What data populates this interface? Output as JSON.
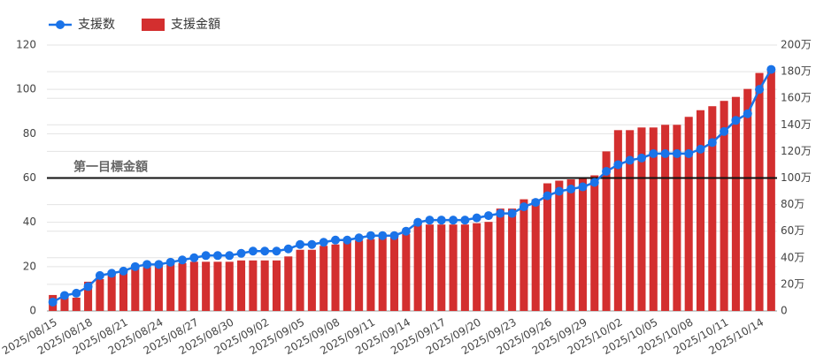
{
  "chart_data": {
    "type": "combo",
    "categories": [
      "2025/08/15",
      null,
      null,
      "2025/08/18",
      null,
      null,
      "2025/08/21",
      null,
      null,
      "2025/08/24",
      null,
      null,
      "2025/08/27",
      null,
      null,
      "2025/08/30",
      null,
      null,
      "2025/09/02",
      null,
      null,
      "2025/09/05",
      null,
      null,
      "2025/09/08",
      null,
      null,
      "2025/09/11",
      null,
      null,
      "2025/09/14",
      null,
      null,
      "2025/09/17",
      null,
      null,
      "2025/09/20",
      null,
      null,
      "2025/09/23",
      null,
      null,
      "2025/09/26",
      null,
      null,
      "2025/09/29",
      null,
      null,
      "2025/10/02",
      null,
      null,
      "2025/10/05",
      null,
      null,
      "2025/10/08",
      null,
      null,
      "2025/10/11",
      null,
      null,
      "2025/10/14",
      null
    ],
    "series": [
      {
        "name": "支援数",
        "type": "line",
        "color": "#1a73e8",
        "axis": "y",
        "values": [
          4,
          7,
          8,
          11,
          16,
          17,
          18,
          20,
          21,
          21,
          22,
          23,
          24,
          25,
          25,
          25,
          26,
          27,
          27,
          27,
          28,
          30,
          30,
          31,
          32,
          32,
          33,
          34,
          34,
          34,
          36,
          40,
          41,
          41,
          41,
          41,
          42,
          43,
          44,
          44,
          47,
          49,
          52,
          54,
          55,
          56,
          58,
          63,
          66,
          68,
          69,
          71,
          71,
          71,
          71,
          73,
          76,
          81,
          86,
          89,
          100,
          109
        ]
      },
      {
        "name": "支援金額",
        "type": "bar",
        "color": "#d32f2f",
        "axis": "y2",
        "values": [
          120000,
          100000,
          100000,
          220000,
          240000,
          290000,
          290000,
          320000,
          330000,
          350000,
          350000,
          360000,
          370000,
          370000,
          370000,
          370000,
          380000,
          380000,
          380000,
          380000,
          410000,
          460000,
          460000,
          490000,
          500000,
          520000,
          530000,
          540000,
          560000,
          560000,
          580000,
          650000,
          650000,
          650000,
          650000,
          650000,
          660000,
          670000,
          770000,
          770000,
          840000,
          840000,
          960000,
          980000,
          990000,
          1000000,
          1020000,
          1200000,
          1360000,
          1360000,
          1380000,
          1380000,
          1400000,
          1400000,
          1460000,
          1510000,
          1540000,
          1580000,
          1610000,
          1670000,
          1790000,
          1800000
        ]
      }
    ],
    "ylim": [
      0,
      120
    ],
    "yticks": [
      0,
      20,
      40,
      60,
      80,
      100,
      120
    ],
    "y2lim": [
      0,
      2000000
    ],
    "y2ticks": [
      0,
      {
        "value": 200000,
        "label": "20万"
      },
      {
        "value": 400000,
        "label": "40万"
      },
      {
        "value": 600000,
        "label": "60万"
      },
      {
        "value": 800000,
        "label": "80万"
      },
      {
        "value": 1000000,
        "label": "100万"
      },
      {
        "value": 1200000,
        "label": "120万"
      },
      {
        "value": 1400000,
        "label": "140万"
      },
      {
        "value": 1600000,
        "label": "160万"
      },
      {
        "value": 1800000,
        "label": "180万"
      },
      {
        "value": 2000000,
        "label": "200万"
      }
    ],
    "target_line": {
      "value": 1000000,
      "axis": "y2",
      "label": "第一目標金額"
    },
    "grid": true
  }
}
